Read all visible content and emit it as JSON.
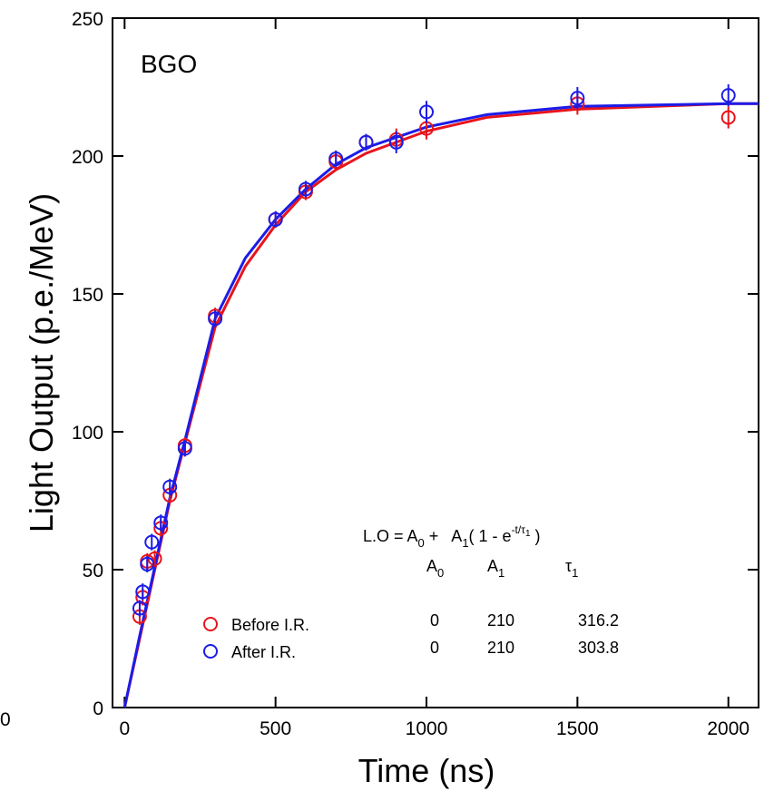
{
  "chart_data": {
    "type": "scatter",
    "annotation": "BGO",
    "x_label": "Time (ns)",
    "y_label": "Light Output (p.e./MeV)",
    "extra_text": "0",
    "xlim": [
      -40,
      2100
    ],
    "ylim": [
      0,
      250
    ],
    "xticks": [
      0,
      500,
      1000,
      1500,
      2000
    ],
    "yticks": [
      0,
      50,
      100,
      150,
      200,
      250
    ],
    "series": [
      {
        "name": "Before I.R.",
        "color": "#e8141c",
        "x": [
          50,
          60,
          75,
          100,
          120,
          150,
          200,
          300,
          500,
          600,
          700,
          800,
          900,
          1000,
          1500,
          2000
        ],
        "values": [
          33,
          40,
          53,
          54,
          65,
          77,
          95,
          142,
          177,
          187,
          198,
          205,
          206,
          210,
          219,
          214
        ],
        "errors": [
          3,
          3,
          3,
          3,
          3,
          3,
          3,
          3,
          3,
          3,
          3,
          3,
          4,
          4,
          4,
          4
        ]
      },
      {
        "name": "After I.R.",
        "color": "#1c1ce8",
        "x": [
          50,
          60,
          75,
          90,
          120,
          150,
          200,
          300,
          500,
          600,
          700,
          800,
          900,
          1000,
          1500,
          2000
        ],
        "values": [
          36,
          42,
          52,
          60,
          67,
          80,
          94,
          141,
          177,
          188,
          199,
          205,
          205,
          216,
          221,
          222
        ],
        "errors": [
          3,
          3,
          3,
          3,
          3,
          3,
          3,
          3,
          3,
          3,
          3,
          3,
          4,
          4,
          4,
          4
        ]
      }
    ],
    "fit_curves": [
      {
        "color": "#e8141c",
        "x": [
          0,
          50,
          100,
          150,
          200,
          300,
          400,
          500,
          600,
          700,
          800,
          1000,
          1200,
          1500,
          2000,
          2100
        ],
        "values": [
          0,
          25,
          50,
          75,
          96,
          138,
          160,
          175,
          187,
          195,
          201,
          209,
          214,
          217,
          219,
          219
        ]
      },
      {
        "color": "#1c1ce8",
        "x": [
          0,
          50,
          100,
          150,
          200,
          300,
          400,
          500,
          600,
          700,
          800,
          1000,
          1200,
          1500,
          2000,
          2100
        ],
        "values": [
          0,
          26,
          51,
          76,
          97,
          141,
          163,
          177,
          188,
          197,
          203,
          210.5,
          215,
          218,
          219,
          219
        ]
      }
    ],
    "equation": [
      "L.O = A",
      "0",
      " +   A",
      "1",
      "( 1 - e",
      "-t/τ",
      "1",
      " )"
    ],
    "fit_table": {
      "header": [
        [
          "A",
          "0"
        ],
        [
          "A",
          "1"
        ],
        [
          "τ",
          "1"
        ]
      ],
      "rows": [
        [
          "0",
          "210",
          "316.2"
        ],
        [
          "0",
          "210",
          "303.8"
        ]
      ]
    }
  }
}
